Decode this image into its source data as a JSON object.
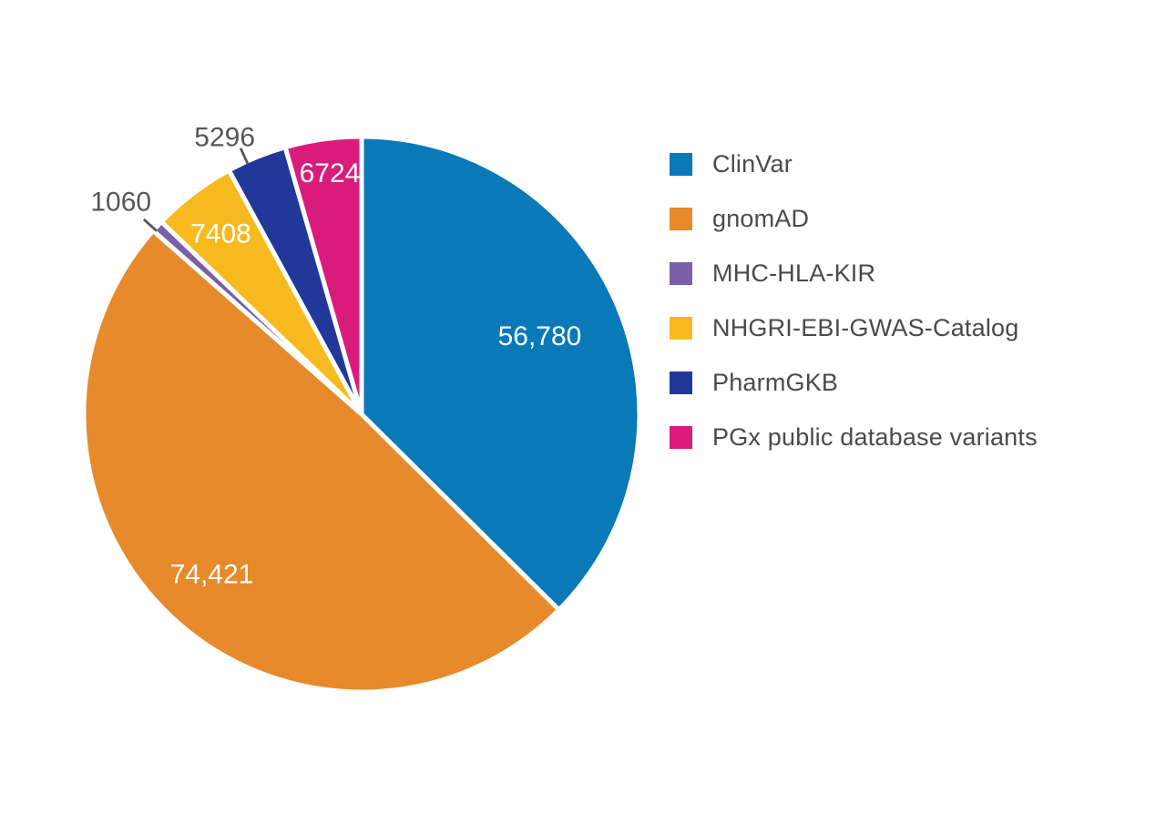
{
  "chart_data": {
    "type": "pie",
    "title": "",
    "legend_position": "right",
    "start_angle_deg": 0,
    "direction": "clockwise",
    "background": "#ffffff",
    "outside_label_color": "#575756",
    "slices": [
      {
        "label": "ClinVar",
        "value": 56780,
        "display_value": "56,780",
        "color": "#0A79B8",
        "label_placement": "inside",
        "label_color": "#ffffff",
        "label_radius_frac": 0.705,
        "label_offset": [
          -3,
          -3
        ]
      },
      {
        "label": "gnomAD",
        "value": 74421,
        "display_value": "74,421",
        "color": "#E68A2B",
        "label_placement": "inside",
        "label_color": "#ffffff",
        "label_radius_frac": 0.79,
        "label_offset": [
          0,
          0
        ]
      },
      {
        "label": "MHC-HLA-KIR",
        "value": 1060,
        "display_value": "1060",
        "color": "#7B5FA9",
        "label_placement": "outside",
        "label_color": "#575756",
        "label_offset": [
          -9,
          2
        ],
        "leader_angle_offset": -0.8
      },
      {
        "label": "NHGRI-EBI-GWAS-Catalog",
        "value": 7408,
        "display_value": "7408",
        "color": "#F7BA1E",
        "label_placement": "inside",
        "label_color": "#ffffff",
        "label_radius_frac": 0.825,
        "label_offset": [
          -2,
          2
        ]
      },
      {
        "label": "PharmGKB",
        "value": 5296,
        "display_value": "5296",
        "color": "#21379A",
        "label_placement": "outside",
        "label_color": "#575756",
        "label_offset": [
          -19,
          17
        ],
        "leader_angle_offset": -2.2
      },
      {
        "label": "PGx public database variants",
        "value": 6724,
        "display_value": "6724",
        "color": "#D91C7B",
        "label_placement": "inside",
        "label_color": "#ffffff",
        "label_radius_frac": 0.875,
        "label_offset": [
          2,
          0
        ]
      }
    ]
  }
}
